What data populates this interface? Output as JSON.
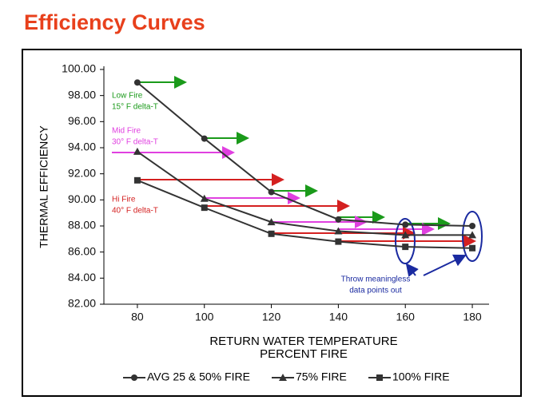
{
  "chart_data": {
    "type": "line",
    "title": "Efficiency Curves",
    "x_label": "RETURN WATER TEMPERATURE",
    "x_label_2": "PERCENT FIRE",
    "y_label": "THERMAL EFFICIENCY",
    "x": [
      80,
      100,
      120,
      140,
      160,
      180
    ],
    "series": [
      {
        "name": "AVG 25 & 50% FIRE",
        "marker": "circle",
        "color": "#333333",
        "values": [
          99.0,
          94.7,
          90.6,
          88.5,
          88.1,
          88.0
        ]
      },
      {
        "name": "75% FIRE",
        "marker": "triangle",
        "color": "#333333",
        "values": [
          93.7,
          90.1,
          88.3,
          87.6,
          87.3,
          87.3
        ]
      },
      {
        "name": "100% FIRE",
        "marker": "square",
        "color": "#333333",
        "values": [
          91.5,
          89.4,
          87.4,
          86.8,
          86.4,
          86.3
        ]
      }
    ],
    "xlim": [
      70,
      185
    ],
    "xticks": [
      80,
      100,
      120,
      140,
      160,
      180
    ],
    "ylim": [
      82,
      100
    ],
    "yticks": [
      {
        "value": 82,
        "label": "82.00"
      },
      {
        "value": 84,
        "label": "84.00"
      },
      {
        "value": 86,
        "label": "86.00"
      },
      {
        "value": 88,
        "label": "88.00"
      },
      {
        "value": 90,
        "label": "90.00"
      },
      {
        "value": 92,
        "label": "92.00"
      },
      {
        "value": 94,
        "label": "94.00"
      },
      {
        "value": 96,
        "label": "96.00"
      },
      {
        "value": 98,
        "label": "98.00"
      },
      {
        "value": 100,
        "label": "100.00"
      }
    ],
    "annotations": {
      "low_fire": [
        "Low Fire",
        "15° F delta-T"
      ],
      "mid_fire": [
        "Mid Fire",
        "30° F delta-T"
      ],
      "hi_fire": [
        "Hi Fire",
        "40° F delta-T"
      ],
      "note": [
        "Throw meaningless",
        "data points out"
      ]
    }
  }
}
